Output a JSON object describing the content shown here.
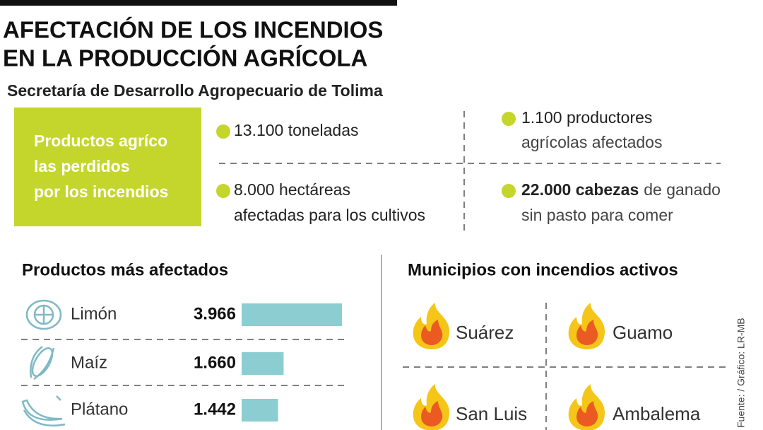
{
  "header": {
    "title": [
      "AFECTACIÓN DE LOS INCENDIOS",
      "EN LA PRODUCCIÓN AGRÍCOLA"
    ],
    "subtitle": "Secretaría de Desarrollo Agropecuario de Tolima"
  },
  "summary": {
    "box": [
      "Productos agríco",
      "las perdidos",
      "por los incendios"
    ],
    "stats": [
      {
        "text": "13.100 toneladas"
      },
      {
        "text": "1.100 productores",
        "line2": "agrícolas afectados"
      },
      {
        "text": "8.000 hectáreas",
        "line2": "afectadas para los cultivos"
      },
      {
        "lead": "22.000 cabezas",
        "rest": "de ganado",
        "line2": "sin pasto para comer"
      }
    ]
  },
  "chart_data": {
    "type": "bar",
    "orientation": "horizontal",
    "title": "Productos más afectados",
    "categories": [
      "Limón",
      "Maíz",
      "Plátano"
    ],
    "values": [
      3966,
      1660,
      1442
    ],
    "value_labels": [
      "3.966",
      "1.660",
      "1.442"
    ],
    "color": "#8ccdd2"
  },
  "municipalities": {
    "title": "Municipios con incendios activos",
    "items": [
      "Suárez",
      "Guamo",
      "San Luis",
      "Ambalema"
    ]
  },
  "footer": {
    "source": "Fuente: / Gráfico: LR-MB"
  }
}
